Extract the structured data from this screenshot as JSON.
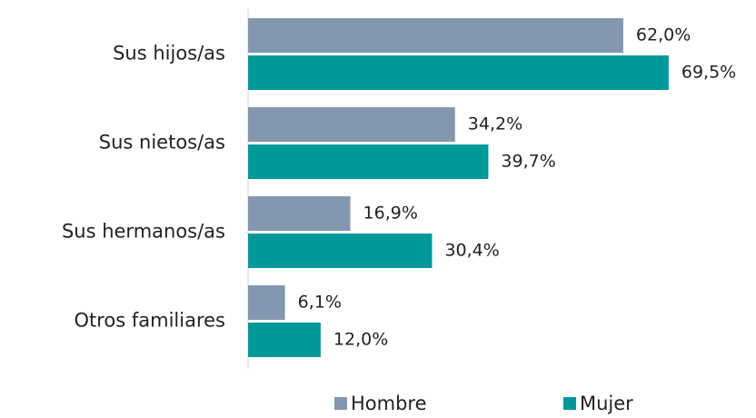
{
  "chart_data": {
    "type": "bar",
    "orientation": "horizontal",
    "categories": [
      "Sus hijos/as",
      "Sus nietos/as",
      "Sus hermanos/as",
      "Otros familiares"
    ],
    "series": [
      {
        "name": "Hombre",
        "color": "#8497b0",
        "values": [
          62.0,
          34.2,
          16.9,
          6.1
        ],
        "value_labels": [
          "62,0%",
          "34,2%",
          "16,9%",
          "6,1%"
        ]
      },
      {
        "name": "Mujer",
        "color": "#009999",
        "values": [
          69.5,
          39.7,
          30.4,
          12.0
        ],
        "value_labels": [
          "69,5%",
          "39,7%",
          "30,4%",
          "12,0%"
        ]
      }
    ],
    "legend": "bottom"
  }
}
